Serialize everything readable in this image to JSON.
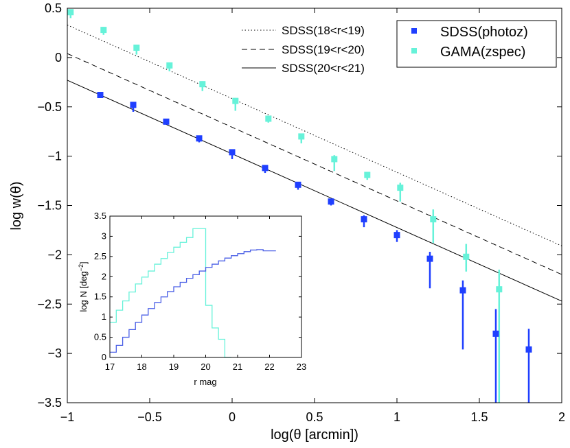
{
  "chart_data": {
    "type": "scatter",
    "xlabel": "log(θ [arcmin])",
    "ylabel": "log w(θ)",
    "xlim": [
      -1,
      2
    ],
    "ylim": [
      -3.5,
      0.5
    ],
    "x_ticks": [
      -1,
      -0.5,
      0,
      0.5,
      1,
      1.5,
      2
    ],
    "x_tick_labels": [
      "−1",
      "−0.5",
      "0",
      "0.5",
      "1",
      "1.5",
      "2"
    ],
    "y_ticks": [
      0.5,
      0,
      -0.5,
      -1,
      -1.5,
      -2,
      -2.5,
      -3,
      -3.5
    ],
    "y_tick_labels": [
      "0.5",
      "0",
      "−0.5",
      "−1",
      "−1.5",
      "−2",
      "−2.5",
      "−3",
      "−3.5"
    ],
    "lines": [
      {
        "name": "SDSS(18<r<19)",
        "style": "dotted",
        "x": [
          -1,
          2
        ],
        "y": [
          0.33,
          -1.91
        ]
      },
      {
        "name": "SDSS(19<r<20)",
        "style": "dashed",
        "x": [
          -1,
          2
        ],
        "y": [
          0.04,
          -2.2
        ]
      },
      {
        "name": "SDSS(20<r<21)",
        "style": "solid",
        "x": [
          -1,
          2
        ],
        "y": [
          -0.23,
          -2.47
        ]
      }
    ],
    "series": [
      {
        "name": "SDSS(photoz)",
        "color": "#1f3fff",
        "x": [
          -0.8,
          -0.6,
          -0.4,
          -0.2,
          0.0,
          0.2,
          0.4,
          0.6,
          0.8,
          1.0,
          1.2,
          1.4,
          1.6,
          1.8
        ],
        "y": [
          -0.38,
          -0.48,
          -0.65,
          -0.82,
          -0.96,
          -1.12,
          -1.29,
          -1.46,
          -1.64,
          -1.8,
          -2.04,
          -2.36,
          -2.8,
          -2.96
        ],
        "err_low": [
          0.02,
          0.07,
          0.02,
          0.04,
          0.07,
          0.05,
          0.05,
          0.04,
          0.08,
          0.07,
          0.3,
          0.6,
          1.1,
          0.8
        ],
        "err_high": [
          0.02,
          0.03,
          0.02,
          0.02,
          0.03,
          0.03,
          0.03,
          0.03,
          0.04,
          0.05,
          0.07,
          0.1,
          0.25,
          0.21
        ]
      },
      {
        "name": "GAMA(zspec)",
        "color": "#66f2d9",
        "x": [
          -0.98,
          -0.78,
          -0.58,
          -0.38,
          -0.18,
          0.02,
          0.22,
          0.42,
          0.62,
          0.82,
          1.02,
          1.22,
          1.42,
          1.62
        ],
        "y": [
          0.46,
          0.28,
          0.1,
          -0.08,
          -0.27,
          -0.44,
          -0.62,
          -0.8,
          -1.03,
          -1.19,
          -1.32,
          -1.64,
          -2.02,
          -2.35
        ],
        "err_low": [
          0.06,
          0.05,
          0.07,
          0.06,
          0.07,
          0.1,
          0.04,
          0.07,
          0.12,
          0.05,
          0.14,
          0.24,
          0.15,
          1.2
        ],
        "err_high": [
          0.03,
          0.03,
          0.03,
          0.03,
          0.03,
          0.03,
          0.03,
          0.03,
          0.04,
          0.03,
          0.05,
          0.1,
          0.13,
          0.2
        ]
      }
    ],
    "legend_lines": [
      "SDSS(18<r<19)",
      "SDSS(19<r<20)",
      "SDSS(20<r<21)"
    ],
    "legend_markers": [
      "SDSS(photoz)",
      "GAMA(zspec)"
    ],
    "inset": {
      "type": "step",
      "xlabel": "r mag",
      "ylabel": "log N [deg",
      "ylabel_sup": "−2",
      "ylabel_end": "]",
      "xlim": [
        17,
        23
      ],
      "ylim": [
        0,
        3.5
      ],
      "x_ticks": [
        17,
        18,
        19,
        20,
        21,
        22,
        23
      ],
      "x_tick_labels": [
        "17",
        "18",
        "19",
        "20",
        "21",
        "22",
        "23"
      ],
      "y_ticks": [
        0,
        0.5,
        1,
        1.5,
        2,
        2.5,
        3,
        3.5
      ],
      "y_tick_labels": [
        "0",
        "0.5",
        "1",
        "1.5",
        "2",
        "2.5",
        "3",
        "3.5"
      ],
      "series": [
        {
          "name": "GAMA",
          "color": "#66f2d9",
          "edges": [
            17.0,
            17.2,
            17.4,
            17.6,
            17.8,
            18.0,
            18.2,
            18.4,
            18.6,
            18.8,
            19.0,
            19.2,
            19.4,
            19.6,
            19.8,
            20.0,
            20.2,
            20.4,
            20.6
          ],
          "values": [
            0.87,
            1.17,
            1.4,
            1.62,
            1.82,
            1.99,
            2.14,
            2.31,
            2.45,
            2.6,
            2.73,
            2.85,
            2.97,
            3.19,
            3.19,
            1.29,
            0.73,
            0.45,
            0.0
          ]
        },
        {
          "name": "SDSS",
          "color": "#4a5fe6",
          "edges": [
            17.0,
            17.2,
            17.4,
            17.6,
            17.8,
            18.0,
            18.2,
            18.4,
            18.6,
            18.8,
            19.0,
            19.2,
            19.4,
            19.6,
            19.8,
            20.0,
            20.2,
            20.4,
            20.6,
            20.8,
            21.0,
            21.2,
            21.4,
            21.6,
            21.8,
            22.0
          ],
          "values": [
            0.13,
            0.3,
            0.5,
            0.69,
            0.87,
            1.05,
            1.21,
            1.36,
            1.5,
            1.63,
            1.75,
            1.86,
            1.96,
            2.05,
            2.14,
            2.23,
            2.31,
            2.39,
            2.46,
            2.52,
            2.57,
            2.62,
            2.66,
            2.67,
            2.64,
            2.64
          ]
        }
      ]
    }
  }
}
